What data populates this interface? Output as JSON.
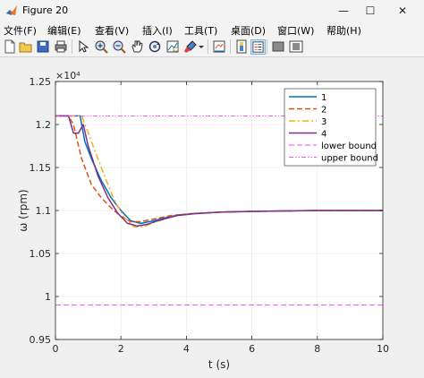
{
  "window": {
    "title": "Figure 20",
    "minimize": "—",
    "maximize": "☐",
    "close": "✕"
  },
  "menu": [
    "文件(F)",
    "编辑(E)",
    "查看(V)",
    "插入(I)",
    "工具(T)",
    "桌面(D)",
    "窗口(W)",
    "帮助(H)"
  ],
  "toolbar_icons": [
    "new-figure-icon",
    "open-file-icon",
    "save-icon",
    "print-icon",
    "arrow-select-icon",
    "zoom-in-icon",
    "zoom-out-icon",
    "pan-icon",
    "rotate-3d-icon",
    "data-cursor-icon",
    "brush-icon",
    "brush-dropdown-icon",
    "link-plot-icon",
    "colorbar-icon",
    "legend-icon",
    "hide-plot-tools-icon",
    "show-plot-tools-icon"
  ],
  "chart_data": {
    "type": "line",
    "title": "",
    "xlabel": "t (s)",
    "ylabel": "ω (rpm)",
    "xlim": [
      0,
      10
    ],
    "ylim": [
      0.95,
      1.25
    ],
    "y_multiplier": "×10⁴",
    "x_ticks": [
      "0",
      "2",
      "4",
      "6",
      "8",
      "10"
    ],
    "x_tick_values": [
      0,
      2,
      4,
      6,
      8,
      10
    ],
    "y_ticks": [
      "0.95",
      "1",
      "1.05",
      "1.1",
      "1.15",
      "1.2",
      "1.25"
    ],
    "y_tick_values": [
      0.95,
      1.0,
      1.05,
      1.1,
      1.15,
      1.2,
      1.25
    ],
    "grid": true,
    "legend_position": "top-right",
    "series": [
      {
        "name": "1",
        "color": "#0072bd",
        "dash": "solid",
        "x": [
          0,
          0.6,
          0.75,
          0.9,
          1.1,
          1.4,
          1.7,
          2.0,
          2.3,
          2.6,
          3.0,
          3.5,
          4.0,
          5,
          6,
          8,
          10
        ],
        "y": [
          1.21,
          1.21,
          1.21,
          1.18,
          1.16,
          1.135,
          1.115,
          1.1,
          1.088,
          1.085,
          1.088,
          1.093,
          1.096,
          1.098,
          1.099,
          1.1,
          1.1
        ]
      },
      {
        "name": "2",
        "color": "#d95319",
        "dash": "dashed",
        "x": [
          0,
          0.4,
          0.55,
          0.8,
          1.1,
          1.4,
          1.7,
          2.0,
          2.3,
          2.6,
          3.0,
          3.5,
          4.0,
          5,
          6,
          8,
          10
        ],
        "y": [
          1.21,
          1.21,
          1.2,
          1.16,
          1.13,
          1.115,
          1.103,
          1.093,
          1.087,
          1.087,
          1.09,
          1.094,
          1.096,
          1.098,
          1.099,
          1.1,
          1.1
        ]
      },
      {
        "name": "3",
        "color": "#edb120",
        "dash": "dashdot",
        "x": [
          0,
          0.8,
          0.95,
          1.2,
          1.5,
          1.8,
          2.1,
          2.4,
          2.7,
          3.0,
          3.5,
          4.0,
          5,
          6,
          8,
          10
        ],
        "y": [
          1.21,
          1.21,
          1.195,
          1.17,
          1.14,
          1.112,
          1.092,
          1.081,
          1.081,
          1.086,
          1.092,
          1.096,
          1.098,
          1.099,
          1.1,
          1.1
        ]
      },
      {
        "name": "4",
        "color": "#7e2f8e",
        "dash": "solid",
        "x": [
          0,
          0.4,
          0.55,
          0.7,
          0.85,
          1.0,
          1.3,
          1.6,
          1.9,
          2.2,
          2.5,
          2.8,
          3.2,
          3.7,
          4.2,
          5,
          6,
          8,
          10
        ],
        "y": [
          1.21,
          1.21,
          1.19,
          1.19,
          1.2,
          1.175,
          1.14,
          1.115,
          1.097,
          1.085,
          1.082,
          1.084,
          1.089,
          1.094,
          1.096,
          1.098,
          1.099,
          1.1,
          1.1
        ]
      },
      {
        "name": "lower bound",
        "color": "#ff44ff",
        "dash": "dashed",
        "x": [
          0,
          10
        ],
        "y": [
          0.99,
          0.99
        ]
      },
      {
        "name": "upper bound",
        "color": "#ff44ff",
        "dash": "dashdotdot",
        "x": [
          0,
          10
        ],
        "y": [
          1.21,
          1.21
        ]
      }
    ]
  }
}
